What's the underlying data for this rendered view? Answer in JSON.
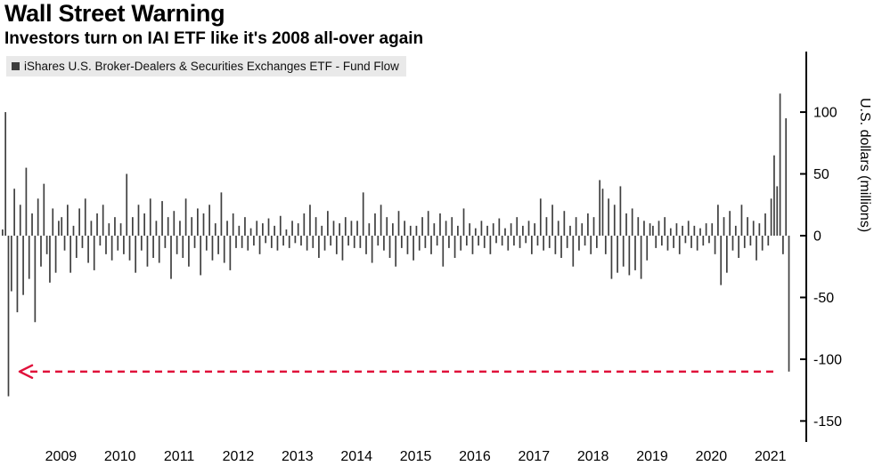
{
  "chart_data": {
    "type": "bar",
    "title": "Wall Street Warning",
    "subtitle": "Investors turn on IAI ETF like it's 2008 all-over again",
    "legend": "iShares U.S. Broker-Dealers & Securities Exchanges ETF - Fund Flow",
    "ylabel": "U.S. dollars (millions)",
    "y_ticks": [
      100,
      50,
      0,
      -50,
      -100,
      -150
    ],
    "y_domain": [
      -167,
      149
    ],
    "x_ticks": [
      2009,
      2010,
      2011,
      2012,
      2013,
      2014,
      2015,
      2016,
      2017,
      2018,
      2019,
      2020,
      2021
    ],
    "start_year": 2008,
    "points_per_year": 20,
    "bar_color": "#3f3f3f",
    "axis_color": "#000000",
    "legend_bg": "#e9e9e9",
    "annotation": {
      "shape": "dashed-line-arrow-left",
      "value": -110,
      "color": "#e0103a"
    },
    "series": [
      {
        "name": "iShares U.S. Broker-Dealers & Securities Exchanges ETF - Fund Flow",
        "values": [
          5,
          100,
          -130,
          -45,
          38,
          -62,
          25,
          -48,
          55,
          -35,
          18,
          -70,
          30,
          -25,
          42,
          -15,
          -38,
          22,
          -30,
          12,
          15,
          -12,
          25,
          -30,
          8,
          -18,
          22,
          -10,
          30,
          -22,
          12,
          -28,
          18,
          -8,
          25,
          -15,
          10,
          -20,
          15,
          -12,
          10,
          -15,
          50,
          -20,
          15,
          -30,
          25,
          -12,
          18,
          -25,
          30,
          -18,
          12,
          -22,
          28,
          -10,
          15,
          -35,
          20,
          -15,
          12,
          -18,
          30,
          -25,
          15,
          -10,
          22,
          -32,
          18,
          -12,
          25,
          -20,
          10,
          -15,
          35,
          -22,
          12,
          -28,
          18,
          -10,
          8,
          -10,
          15,
          -12,
          6,
          -8,
          12,
          -15,
          10,
          -6,
          14,
          -10,
          8,
          -12,
          16,
          -8,
          5,
          -10,
          12,
          -6,
          10,
          -8,
          18,
          -12,
          25,
          -10,
          15,
          -18,
          8,
          -12,
          20,
          -8,
          12,
          -15,
          10,
          -20,
          15,
          -8,
          12,
          -10,
          12,
          -10,
          35,
          -15,
          10,
          -22,
          18,
          -8,
          25,
          -12,
          15,
          -18,
          10,
          -25,
          20,
          -10,
          12,
          -15,
          8,
          -20,
          8,
          -12,
          15,
          -10,
          20,
          -15,
          10,
          -8,
          18,
          -25,
          12,
          -10,
          15,
          -18,
          8,
          -12,
          22,
          -8,
          10,
          -15,
          6,
          -8,
          12,
          -10,
          8,
          -15,
          10,
          -6,
          14,
          -8,
          6,
          -12,
          10,
          -8,
          15,
          -10,
          8,
          -6,
          12,
          -15,
          10,
          -8,
          30,
          -12,
          15,
          -10,
          25,
          -15,
          12,
          -18,
          20,
          -10,
          8,
          -25,
          15,
          -12,
          10,
          -8,
          18,
          -15,
          15,
          -10,
          45,
          38,
          -15,
          30,
          -35,
          25,
          -30,
          40,
          -25,
          18,
          -32,
          22,
          -28,
          15,
          -35,
          12,
          -20,
          10,
          8,
          -10,
          12,
          -8,
          15,
          -12,
          6,
          -10,
          10,
          -15,
          8,
          -6,
          12,
          -10,
          8,
          -12,
          6,
          -8,
          10,
          -6,
          10,
          -15,
          25,
          -40,
          15,
          -30,
          20,
          -12,
          8,
          -18,
          25,
          -10,
          15,
          -8,
          12,
          -20,
          10,
          -12,
          18,
          -8,
          30,
          65,
          40,
          115,
          -15,
          95,
          -110
        ]
      }
    ]
  }
}
